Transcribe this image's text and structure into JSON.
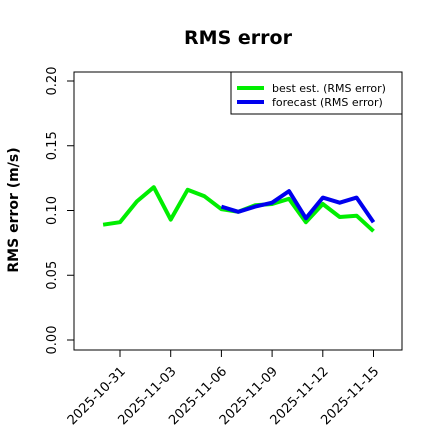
{
  "chart_data": {
    "type": "line",
    "title": "RMS error",
    "xlabel": "",
    "ylabel": "RMS error (m/s)",
    "x_tick_labels": [
      "2025-10-31",
      "2025-11-03",
      "2025-11-06",
      "2025-11-09",
      "2025-11-12",
      "2025-11-15"
    ],
    "highlighted_x_tick": "2025-11-06",
    "highlight_color": "#228B22",
    "y_ticks": [
      "0.00",
      "0.05",
      "0.10",
      "0.15",
      "0.20"
    ],
    "ylim": [
      0.0,
      0.2
    ],
    "legend_position": "top-right",
    "grid": false,
    "series": [
      {
        "name": "best est. (RMS error)",
        "color": "#00ee00",
        "x": [
          "2025-10-30",
          "2025-10-31",
          "2025-11-01",
          "2025-11-02",
          "2025-11-03",
          "2025-11-04",
          "2025-11-05",
          "2025-11-06",
          "2025-11-07",
          "2025-11-08",
          "2025-11-09",
          "2025-11-10",
          "2025-11-11",
          "2025-11-12",
          "2025-11-13",
          "2025-11-14",
          "2025-11-15"
        ],
        "values": [
          0.089,
          0.091,
          0.107,
          0.118,
          0.093,
          0.116,
          0.111,
          0.101,
          0.099,
          0.104,
          0.105,
          0.109,
          0.091,
          0.105,
          0.095,
          0.096,
          0.084
        ]
      },
      {
        "name": "forecast (RMS error)",
        "color": "#0000ee",
        "x": [
          "2025-11-06",
          "2025-11-07",
          "2025-11-08",
          "2025-11-09",
          "2025-11-10",
          "2025-11-11",
          "2025-11-12",
          "2025-11-13",
          "2025-11-14",
          "2025-11-15"
        ],
        "values": [
          0.103,
          0.099,
          0.103,
          0.106,
          0.115,
          0.094,
          0.11,
          0.106,
          0.11,
          0.091
        ]
      }
    ]
  }
}
